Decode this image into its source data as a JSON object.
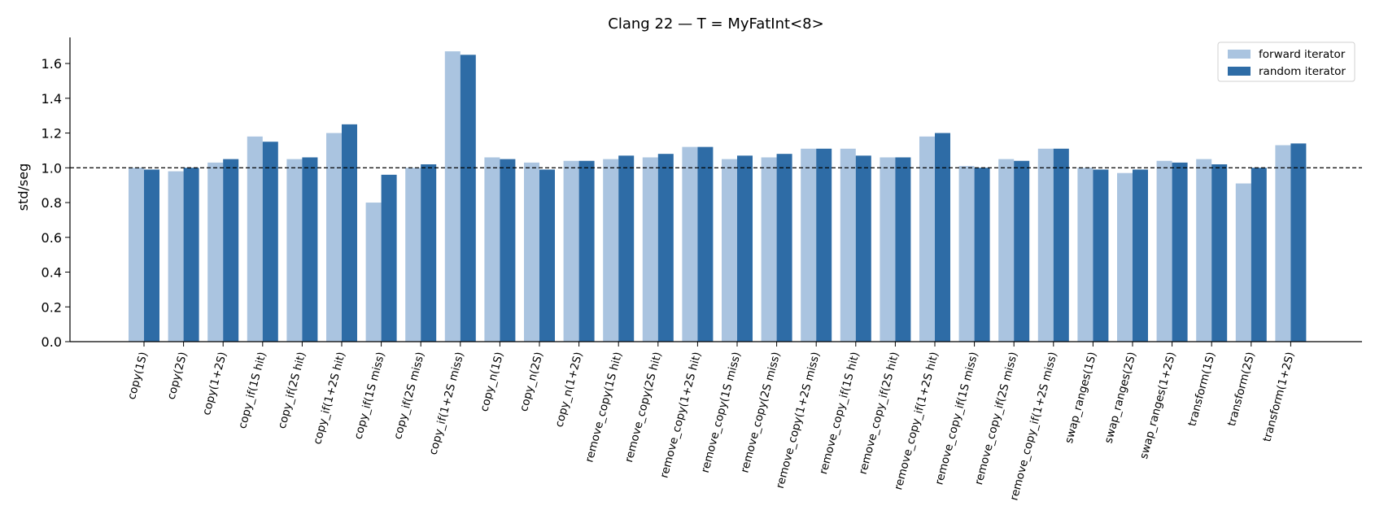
{
  "chart_data": {
    "type": "bar",
    "title": "Clang 22 — T = MyFatInt<8>",
    "xlabel": "",
    "ylabel": "std/seg",
    "ylim": [
      0,
      1.75
    ],
    "yticks": [
      "0.0",
      "0.2",
      "0.4",
      "0.6",
      "0.8",
      "1.0",
      "1.2",
      "1.4",
      "1.6"
    ],
    "reference_line": 1.0,
    "legend_position": "top-right",
    "grid": false,
    "categories": [
      "copy(1S)",
      "copy(2S)",
      "copy(1+2S)",
      "copy_if(1S hit)",
      "copy_if(2S hit)",
      "copy_if(1+2S hit)",
      "copy_if(1S miss)",
      "copy_if(2S miss)",
      "copy_if(1+2S miss)",
      "copy_n(1S)",
      "copy_n(2S)",
      "copy_n(1+2S)",
      "remove_copy(1S hit)",
      "remove_copy(2S hit)",
      "remove_copy(1+2S hit)",
      "remove_copy(1S miss)",
      "remove_copy(2S miss)",
      "remove_copy(1+2S miss)",
      "remove_copy_if(1S hit)",
      "remove_copy_if(2S hit)",
      "remove_copy_if(1+2S hit)",
      "remove_copy_if(1S miss)",
      "remove_copy_if(2S miss)",
      "remove_copy_if(1+2S miss)",
      "swap_ranges(1S)",
      "swap_ranges(2S)",
      "swap_ranges(1+2S)",
      "transform(1S)",
      "transform(2S)",
      "transform(1+2S)"
    ],
    "series": [
      {
        "name": "forward iterator",
        "color": "#aac4e0",
        "values": [
          1.0,
          0.98,
          1.03,
          1.18,
          1.05,
          1.2,
          0.8,
          1.0,
          1.67,
          1.06,
          1.03,
          1.04,
          1.05,
          1.06,
          1.12,
          1.05,
          1.06,
          1.11,
          1.11,
          1.06,
          1.18,
          1.01,
          1.05,
          1.11,
          1.0,
          0.97,
          1.04,
          1.05,
          0.91,
          1.13
        ]
      },
      {
        "name": "random iterator",
        "color": "#2e6ca6",
        "values": [
          0.99,
          1.0,
          1.05,
          1.15,
          1.06,
          1.25,
          0.96,
          1.02,
          1.65,
          1.05,
          0.99,
          1.04,
          1.07,
          1.08,
          1.12,
          1.07,
          1.08,
          1.11,
          1.07,
          1.06,
          1.2,
          1.0,
          1.04,
          1.11,
          0.99,
          0.99,
          1.03,
          1.02,
          1.0,
          1.14
        ]
      }
    ]
  }
}
